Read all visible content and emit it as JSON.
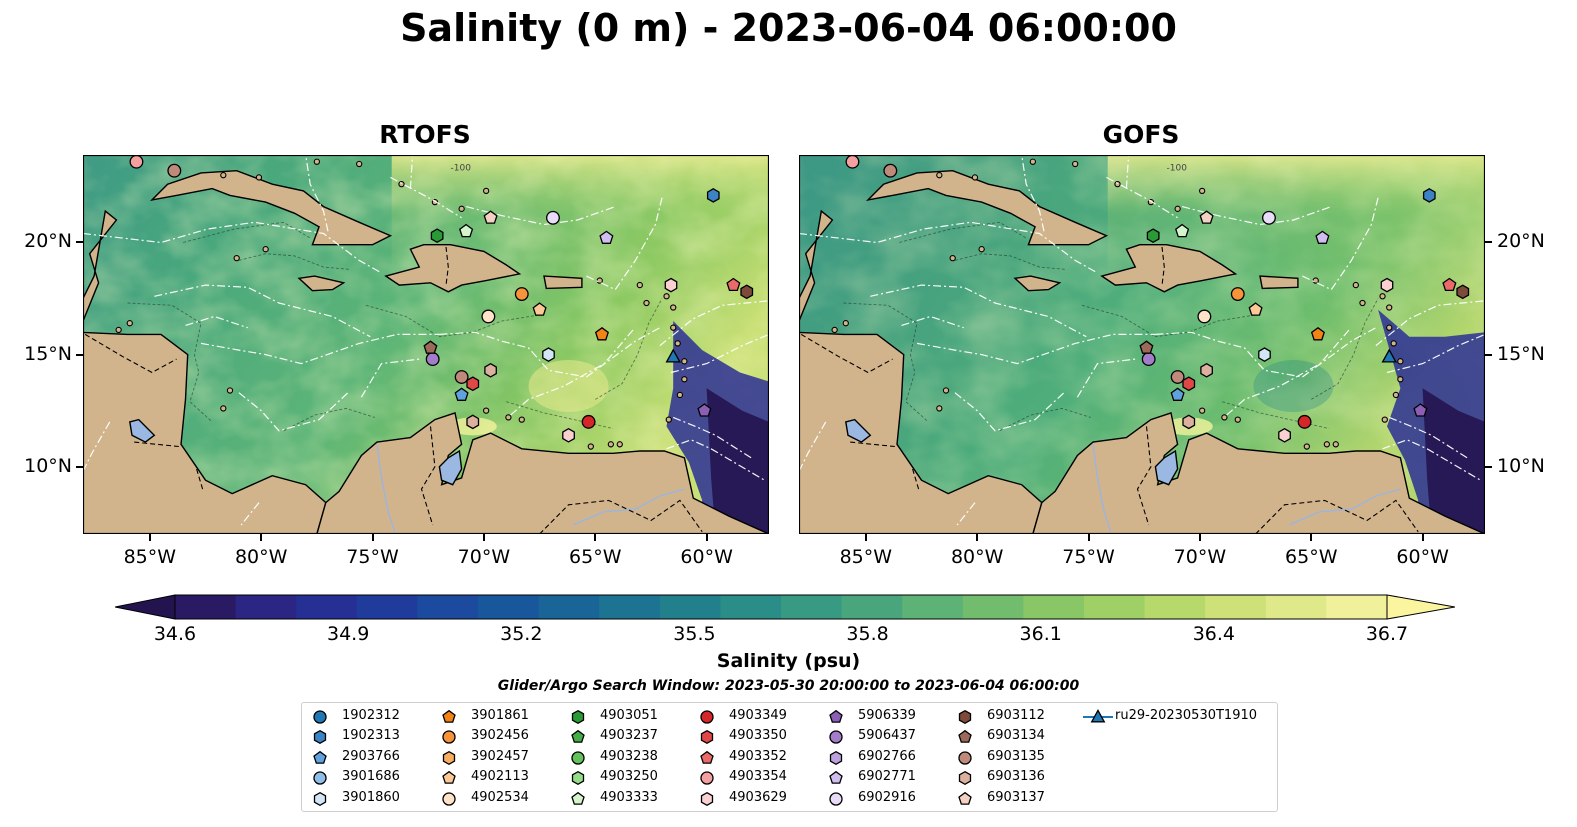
{
  "title": "Salinity (0 m) - 2023-06-04 06:00:00",
  "panels": [
    {
      "title": "RTOFS"
    },
    {
      "title": "GOFS"
    }
  ],
  "lon_labels": [
    "85°W",
    "80°W",
    "75°W",
    "70°W",
    "65°W",
    "60°W"
  ],
  "lat_labels": [
    "20°N",
    "15°N",
    "10°N"
  ],
  "contour_label": "-100",
  "colorbar": {
    "label": "Salinity (psu)",
    "ticks": [
      "34.6",
      "34.9",
      "35.2",
      "35.5",
      "35.8",
      "36.1",
      "36.4",
      "36.7"
    ],
    "colors": [
      "#2a1a63",
      "#2b2584",
      "#252f94",
      "#1f3b9c",
      "#1b4a9f",
      "#19579c",
      "#1a6597",
      "#1c7392",
      "#21808c",
      "#2a8d87",
      "#389a82",
      "#49a67c",
      "#5db276",
      "#72bc6d",
      "#89c665",
      "#9fd066",
      "#b7d96b",
      "#cde178",
      "#e0e98a",
      "#f1f19c"
    ],
    "extend_min_color": "#231450",
    "extend_max_color": "#fbf59f"
  },
  "search_window": "Glider/Argo Search Window: 2023-05-30 20:00:00 to 2023-06-04 06:00:00",
  "legend": [
    {
      "label": "1902312",
      "marker": "circle",
      "color": "#1f77b4"
    },
    {
      "label": "1902313",
      "marker": "hexagon",
      "color": "#3b83c4"
    },
    {
      "label": "2903766",
      "marker": "pentagon",
      "color": "#5fa2dd"
    },
    {
      "label": "3901686",
      "marker": "circle",
      "color": "#8fbfe6"
    },
    {
      "label": "3901860",
      "marker": "hexagon",
      "color": "#d2e6f5"
    },
    {
      "label": "3901861",
      "marker": "pentagon",
      "color": "#f28314"
    },
    {
      "label": "3902456",
      "marker": "circle",
      "color": "#f7933a"
    },
    {
      "label": "3902457",
      "marker": "hexagon",
      "color": "#f8ad63"
    },
    {
      "label": "4902113",
      "marker": "pentagon",
      "color": "#fbc896"
    },
    {
      "label": "4902534",
      "marker": "circle",
      "color": "#fde3c8"
    },
    {
      "label": "4903051",
      "marker": "hexagon",
      "color": "#2a9a36"
    },
    {
      "label": "4903237",
      "marker": "pentagon",
      "color": "#44ad45"
    },
    {
      "label": "4903238",
      "marker": "circle",
      "color": "#62c25b"
    },
    {
      "label": "4903250",
      "marker": "hexagon",
      "color": "#94dc88"
    },
    {
      "label": "4903333",
      "marker": "pentagon",
      "color": "#d4f4cc"
    },
    {
      "label": "4903349",
      "marker": "circle",
      "color": "#d62728"
    },
    {
      "label": "4903350",
      "marker": "hexagon",
      "color": "#e04848"
    },
    {
      "label": "4903352",
      "marker": "pentagon",
      "color": "#ea6a6a"
    },
    {
      "label": "4903354",
      "marker": "circle",
      "color": "#f4a0a0"
    },
    {
      "label": "4903629",
      "marker": "hexagon",
      "color": "#fad0d0"
    },
    {
      "label": "5906339",
      "marker": "pentagon",
      "color": "#8d5eb5"
    },
    {
      "label": "5906437",
      "marker": "circle",
      "color": "#a47dca"
    },
    {
      "label": "6902766",
      "marker": "hexagon",
      "color": "#bda1df"
    },
    {
      "label": "6902771",
      "marker": "pentagon",
      "color": "#d1bef0"
    },
    {
      "label": "6902916",
      "marker": "circle",
      "color": "#e8dcf8"
    },
    {
      "label": "6903112",
      "marker": "hexagon",
      "color": "#7d4a3c"
    },
    {
      "label": "6903134",
      "marker": "pentagon",
      "color": "#9c6a58"
    },
    {
      "label": "6903135",
      "marker": "circle",
      "color": "#c08a7a"
    },
    {
      "label": "6903136",
      "marker": "hexagon",
      "color": "#dcb09f"
    },
    {
      "label": "6903137",
      "marker": "pentagon",
      "color": "#f3d2c4"
    },
    {
      "label": "ru29-20230530T1910",
      "marker": "triangle-line",
      "color": "#1f77b4"
    }
  ]
}
